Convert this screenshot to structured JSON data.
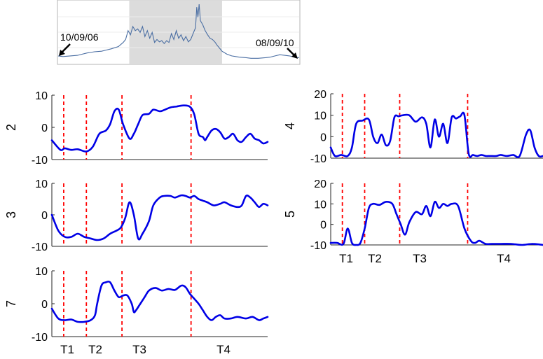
{
  "chart_data": [
    {
      "type": "line",
      "name": "overview",
      "start_label": "10/09/06",
      "end_label": "08/09/10",
      "highlight_range": [
        0.295,
        0.68
      ],
      "line_color": "#4a6ea3",
      "shade_color": "#dcdcdc",
      "points": [
        [
          0,
          0.12
        ],
        [
          0.02,
          0.11
        ],
        [
          0.05,
          0.12
        ],
        [
          0.08,
          0.13
        ],
        [
          0.1,
          0.15
        ],
        [
          0.12,
          0.17
        ],
        [
          0.15,
          0.19
        ],
        [
          0.18,
          0.2
        ],
        [
          0.2,
          0.22
        ],
        [
          0.22,
          0.24
        ],
        [
          0.25,
          0.28
        ],
        [
          0.27,
          0.35
        ],
        [
          0.28,
          0.4
        ],
        [
          0.29,
          0.55
        ],
        [
          0.3,
          0.48
        ],
        [
          0.31,
          0.62
        ],
        [
          0.32,
          0.55
        ],
        [
          0.33,
          0.58
        ],
        [
          0.34,
          0.52
        ],
        [
          0.35,
          0.62
        ],
        [
          0.36,
          0.45
        ],
        [
          0.37,
          0.55
        ],
        [
          0.38,
          0.42
        ],
        [
          0.39,
          0.52
        ],
        [
          0.4,
          0.35
        ],
        [
          0.41,
          0.4
        ],
        [
          0.42,
          0.36
        ],
        [
          0.43,
          0.38
        ],
        [
          0.44,
          0.33
        ],
        [
          0.45,
          0.38
        ],
        [
          0.46,
          0.35
        ],
        [
          0.47,
          0.5
        ],
        [
          0.48,
          0.4
        ],
        [
          0.49,
          0.55
        ],
        [
          0.5,
          0.42
        ],
        [
          0.51,
          0.48
        ],
        [
          0.52,
          0.38
        ],
        [
          0.53,
          0.45
        ],
        [
          0.54,
          0.36
        ],
        [
          0.55,
          0.4
        ],
        [
          0.56,
          0.5
        ],
        [
          0.57,
          0.6
        ],
        [
          0.575,
          0.95
        ],
        [
          0.58,
          0.78
        ],
        [
          0.585,
          1.0
        ],
        [
          0.59,
          0.72
        ],
        [
          0.6,
          0.65
        ],
        [
          0.61,
          0.55
        ],
        [
          0.62,
          0.48
        ],
        [
          0.63,
          0.42
        ],
        [
          0.64,
          0.4
        ],
        [
          0.65,
          0.36
        ],
        [
          0.66,
          0.3
        ],
        [
          0.67,
          0.25
        ],
        [
          0.68,
          0.2
        ],
        [
          0.7,
          0.15
        ],
        [
          0.72,
          0.12
        ],
        [
          0.75,
          0.1
        ],
        [
          0.78,
          0.09
        ],
        [
          0.8,
          0.08
        ],
        [
          0.83,
          0.08
        ],
        [
          0.86,
          0.09
        ],
        [
          0.88,
          0.1
        ],
        [
          0.9,
          0.12
        ],
        [
          0.92,
          0.14
        ],
        [
          0.94,
          0.13
        ],
        [
          0.96,
          0.12
        ],
        [
          0.98,
          0.1
        ],
        [
          1,
          0.09
        ]
      ]
    },
    {
      "type": "line",
      "ylabel": "2",
      "ylim": [
        -10,
        10
      ],
      "yticks": [
        "10",
        "0",
        "-10"
      ],
      "x": [
        0,
        0.04,
        0.06,
        0.09,
        0.12,
        0.16,
        0.19,
        0.22,
        0.25,
        0.27,
        0.29,
        0.31,
        0.33,
        0.36,
        0.38,
        0.4,
        0.42,
        0.45,
        0.47,
        0.5,
        0.52,
        0.55,
        0.58,
        0.61,
        0.64,
        0.66,
        0.68,
        0.7,
        0.71,
        0.72,
        0.74,
        0.76,
        0.78,
        0.8,
        0.82,
        0.84,
        0.86,
        0.88,
        0.9,
        0.92,
        0.94,
        0.96,
        0.98,
        1.0
      ],
      "y": [
        -4,
        -7,
        -6.5,
        -7,
        -6.8,
        -7.5,
        -6,
        -2,
        -1,
        1,
        5,
        5.5,
        1,
        -3.5,
        -2,
        1,
        3.8,
        4.2,
        5.5,
        5,
        5.4,
        6.2,
        6.5,
        6.8,
        6.4,
        4,
        -2,
        -3,
        -4,
        -3,
        -1,
        -0.5,
        -1.5,
        -3.5,
        -3,
        -2,
        -4,
        -4.5,
        -3,
        -2,
        -3.5,
        -4,
        -5,
        -4.5
      ]
    },
    {
      "type": "line",
      "ylabel": "3",
      "ylim": [
        -10,
        10
      ],
      "yticks": [
        "10",
        "0",
        "-10"
      ],
      "x": [
        0,
        0.03,
        0.06,
        0.09,
        0.12,
        0.15,
        0.18,
        0.21,
        0.24,
        0.27,
        0.3,
        0.32,
        0.34,
        0.36,
        0.38,
        0.4,
        0.42,
        0.45,
        0.47,
        0.5,
        0.52,
        0.55,
        0.57,
        0.6,
        0.62,
        0.64,
        0.66,
        0.68,
        0.7,
        0.72,
        0.75,
        0.78,
        0.8,
        0.83,
        0.86,
        0.88,
        0.9,
        0.92,
        0.94,
        0.96,
        0.98,
        1.0
      ],
      "y": [
        0,
        -5,
        -7,
        -7,
        -6,
        -7,
        -7.5,
        -8,
        -7.5,
        -6,
        -5,
        -4,
        -1,
        4,
        0,
        -7.5,
        -6,
        -2,
        3,
        5.5,
        6,
        6,
        5.5,
        6.2,
        6,
        5.5,
        6,
        5,
        4.5,
        4,
        3,
        3.5,
        4,
        3,
        2.5,
        3,
        6,
        5.5,
        4,
        2.5,
        3.5,
        3
      ]
    },
    {
      "type": "line",
      "ylabel": "7",
      "ylim": [
        -10,
        10
      ],
      "yticks": [
        "10",
        "0",
        "-10"
      ],
      "x": [
        0,
        0.03,
        0.06,
        0.09,
        0.12,
        0.15,
        0.18,
        0.2,
        0.21,
        0.23,
        0.25,
        0.27,
        0.29,
        0.31,
        0.33,
        0.35,
        0.37,
        0.38,
        0.39,
        0.41,
        0.43,
        0.45,
        0.48,
        0.51,
        0.54,
        0.57,
        0.6,
        0.62,
        0.64,
        0.66,
        0.68,
        0.7,
        0.72,
        0.74,
        0.76,
        0.78,
        0.8,
        0.83,
        0.86,
        0.9,
        0.93,
        0.96,
        0.98,
        1.0
      ],
      "y": [
        -1.5,
        -4.5,
        -5,
        -4.8,
        -5.5,
        -5.5,
        -5,
        -3.5,
        0,
        5.5,
        6.5,
        6.5,
        4,
        2,
        2.5,
        2.5,
        0,
        -2.5,
        -2,
        0,
        2,
        4,
        4.8,
        4,
        4.5,
        4.2,
        5.5,
        5,
        3,
        1.5,
        0,
        -2,
        -4,
        -5,
        -4,
        -3.5,
        -4.5,
        -4.5,
        -4,
        -4.5,
        -4,
        -5,
        -4.5,
        -4
      ]
    },
    {
      "type": "line",
      "ylabel": "4",
      "ylim": [
        -10,
        20
      ],
      "yticks": [
        "20",
        "10",
        "0",
        "-10"
      ],
      "x": [
        0,
        0.02,
        0.05,
        0.08,
        0.1,
        0.12,
        0.15,
        0.18,
        0.2,
        0.22,
        0.24,
        0.26,
        0.28,
        0.3,
        0.32,
        0.34,
        0.37,
        0.4,
        0.43,
        0.45,
        0.47,
        0.49,
        0.51,
        0.53,
        0.55,
        0.57,
        0.59,
        0.61,
        0.63,
        0.65,
        0.67,
        0.69,
        0.71,
        0.73,
        0.75,
        0.78,
        0.8,
        0.83,
        0.86,
        0.89,
        0.92,
        0.94,
        0.96,
        0.98,
        1.0
      ],
      "y": [
        -5,
        -9,
        -8.5,
        -9,
        -5,
        6,
        7.5,
        8,
        0,
        -3,
        1,
        -4,
        -2,
        9,
        9.5,
        10,
        10,
        7,
        9,
        6,
        -5,
        8,
        0,
        6,
        -3,
        9,
        8.5,
        9.5,
        10,
        -8,
        -8.5,
        -9,
        -8.5,
        -9,
        -9,
        -9,
        -8.5,
        -9,
        -8.5,
        -9,
        1,
        3,
        -5,
        -9,
        -9
      ]
    },
    {
      "type": "line",
      "ylabel": "5",
      "ylim": [
        -10,
        20
      ],
      "yticks": [
        "20",
        "10",
        "0",
        "-10"
      ],
      "x": [
        0,
        0.03,
        0.06,
        0.08,
        0.1,
        0.12,
        0.14,
        0.16,
        0.18,
        0.2,
        0.23,
        0.26,
        0.29,
        0.31,
        0.33,
        0.35,
        0.37,
        0.4,
        0.43,
        0.45,
        0.47,
        0.49,
        0.51,
        0.53,
        0.55,
        0.57,
        0.6,
        0.63,
        0.66,
        0.68,
        0.7,
        0.73,
        0.76,
        0.8,
        0.85,
        0.9,
        0.95,
        1.0
      ],
      "y": [
        -9,
        -9,
        -9.5,
        -2,
        -9,
        -10,
        -9,
        -2,
        8,
        10,
        9.5,
        11,
        10,
        5,
        0,
        -5,
        1,
        6,
        5,
        9,
        4,
        11,
        8,
        10,
        9,
        10,
        9,
        -2,
        -8,
        -9,
        -8,
        -9.5,
        -9.5,
        -9.5,
        -9.5,
        -10,
        -9.5,
        -10
      ]
    }
  ],
  "markers": {
    "positions": [
      0.055,
      0.16,
      0.325,
      0.645
    ],
    "labels": [
      "T1",
      "T2",
      "T3",
      "T4"
    ],
    "color": "#ff0000"
  },
  "series_color": "#0000e6"
}
